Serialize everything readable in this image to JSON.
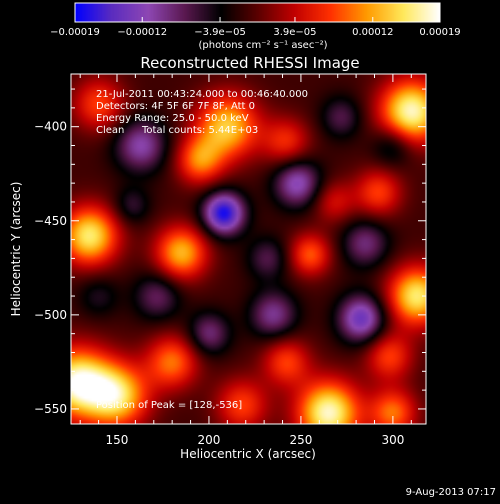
{
  "chart_data": {
    "type": "heatmap",
    "title": "Reconstructed RHESSI Image",
    "xlabel": "Heliocentric X (arcsec)",
    "ylabel": "Heliocentric Y (arcsec)",
    "xlim": [
      125,
      318
    ],
    "ylim": [
      -558,
      -372
    ],
    "x_ticks": [
      150,
      200,
      250,
      300
    ],
    "y_ticks": [
      -400,
      -450,
      -500,
      -550
    ],
    "x_tick_labels": [
      "150",
      "200",
      "250",
      "300"
    ],
    "y_tick_labels": [
      "−400",
      "−450",
      "−500",
      "−550"
    ],
    "colorbar": {
      "range": [
        -0.00019,
        0.00019
      ],
      "ticks": [
        -0.00019,
        -0.00012,
        -3.9e-05,
        3.9e-05,
        0.00012,
        0.00019
      ],
      "tick_labels": [
        "−0.00019",
        "−0.00012",
        "−3.9e−05",
        "3.9e−05",
        "0.00012",
        "0.00019"
      ],
      "units_label": "(photons cm⁻² s⁻¹ asec⁻²)",
      "colormap": [
        "#0000ff",
        "#5b2cbf",
        "#8e47b3",
        "#5a1850",
        "#000000",
        "#5a0000",
        "#c00000",
        "#ff3000",
        "#ff9a00",
        "#ffe85a",
        "#ffffff"
      ]
    },
    "annotations": {
      "time_range": "21-Jul-2011 00:43:24.000 to 00:46:40.000",
      "detectors": "Detectors: 4F 5F 6F 7F 8F, Att 0",
      "energy_range": "Energy Range: 25.0 - 50.0 keV",
      "algorithm": "Clean",
      "total_counts": "Total counts: 5.44E+03",
      "peak_position": "Position of Peak = [128,-536]"
    },
    "blobs": [
      {
        "x": 128,
        "y": -536,
        "amp": 0.00019,
        "sigma": 13
      },
      {
        "x": 150,
        "y": -543,
        "amp": 0.00016,
        "sigma": 12
      },
      {
        "x": 180,
        "y": -525,
        "amp": 0.00011,
        "sigma": 10
      },
      {
        "x": 135,
        "y": -458,
        "amp": 0.00017,
        "sigma": 11
      },
      {
        "x": 185,
        "y": -467,
        "amp": 0.00014,
        "sigma": 10
      },
      {
        "x": 210,
        "y": -400,
        "amp": 0.00015,
        "sigma": 12
      },
      {
        "x": 195,
        "y": -418,
        "amp": 0.00011,
        "sigma": 9
      },
      {
        "x": 242,
        "y": -408,
        "amp": 8e-05,
        "sigma": 9
      },
      {
        "x": 310,
        "y": -392,
        "amp": 0.00019,
        "sigma": 12
      },
      {
        "x": 292,
        "y": -435,
        "amp": 9e-05,
        "sigma": 9
      },
      {
        "x": 140,
        "y": -388,
        "amp": 9e-05,
        "sigma": 10
      },
      {
        "x": 313,
        "y": -490,
        "amp": 0.00017,
        "sigma": 11
      },
      {
        "x": 298,
        "y": -522,
        "amp": 9e-05,
        "sigma": 9
      },
      {
        "x": 255,
        "y": -468,
        "amp": 0.0001,
        "sigma": 8
      },
      {
        "x": 268,
        "y": -440,
        "amp": 6e-05,
        "sigma": 8
      },
      {
        "x": 242,
        "y": -525,
        "amp": 9e-05,
        "sigma": 9
      },
      {
        "x": 265,
        "y": -552,
        "amp": 0.00019,
        "sigma": 12
      },
      {
        "x": 218,
        "y": -548,
        "amp": 9e-05,
        "sigma": 10
      },
      {
        "x": 300,
        "y": -552,
        "amp": 0.00011,
        "sigma": 9
      },
      {
        "x": 235,
        "y": -500,
        "amp": -9e-05,
        "sigma": 9
      },
      {
        "x": 208,
        "y": -446,
        "amp": -0.00017,
        "sigma": 8
      },
      {
        "x": 283,
        "y": -502,
        "amp": -0.00013,
        "sigma": 9
      },
      {
        "x": 248,
        "y": -430,
        "amp": -0.00011,
        "sigma": 9
      },
      {
        "x": 163,
        "y": -410,
        "amp": -0.0001,
        "sigma": 10
      },
      {
        "x": 285,
        "y": -462,
        "amp": -8e-05,
        "sigma": 9
      },
      {
        "x": 300,
        "y": -410,
        "amp": -6e-05,
        "sigma": 8
      },
      {
        "x": 172,
        "y": -490,
        "amp": -7e-05,
        "sigma": 9
      },
      {
        "x": 140,
        "y": -490,
        "amp": -4e-05,
        "sigma": 8
      },
      {
        "x": 232,
        "y": -470,
        "amp": -6e-05,
        "sigma": 8
      },
      {
        "x": 200,
        "y": -510,
        "amp": -8e-05,
        "sigma": 8
      },
      {
        "x": 272,
        "y": -395,
        "amp": -6e-05,
        "sigma": 8
      },
      {
        "x": 158,
        "y": -442,
        "amp": -5e-05,
        "sigma": 7
      }
    ]
  },
  "footer": {
    "date_stamp": "9-Aug-2013 07:17"
  }
}
